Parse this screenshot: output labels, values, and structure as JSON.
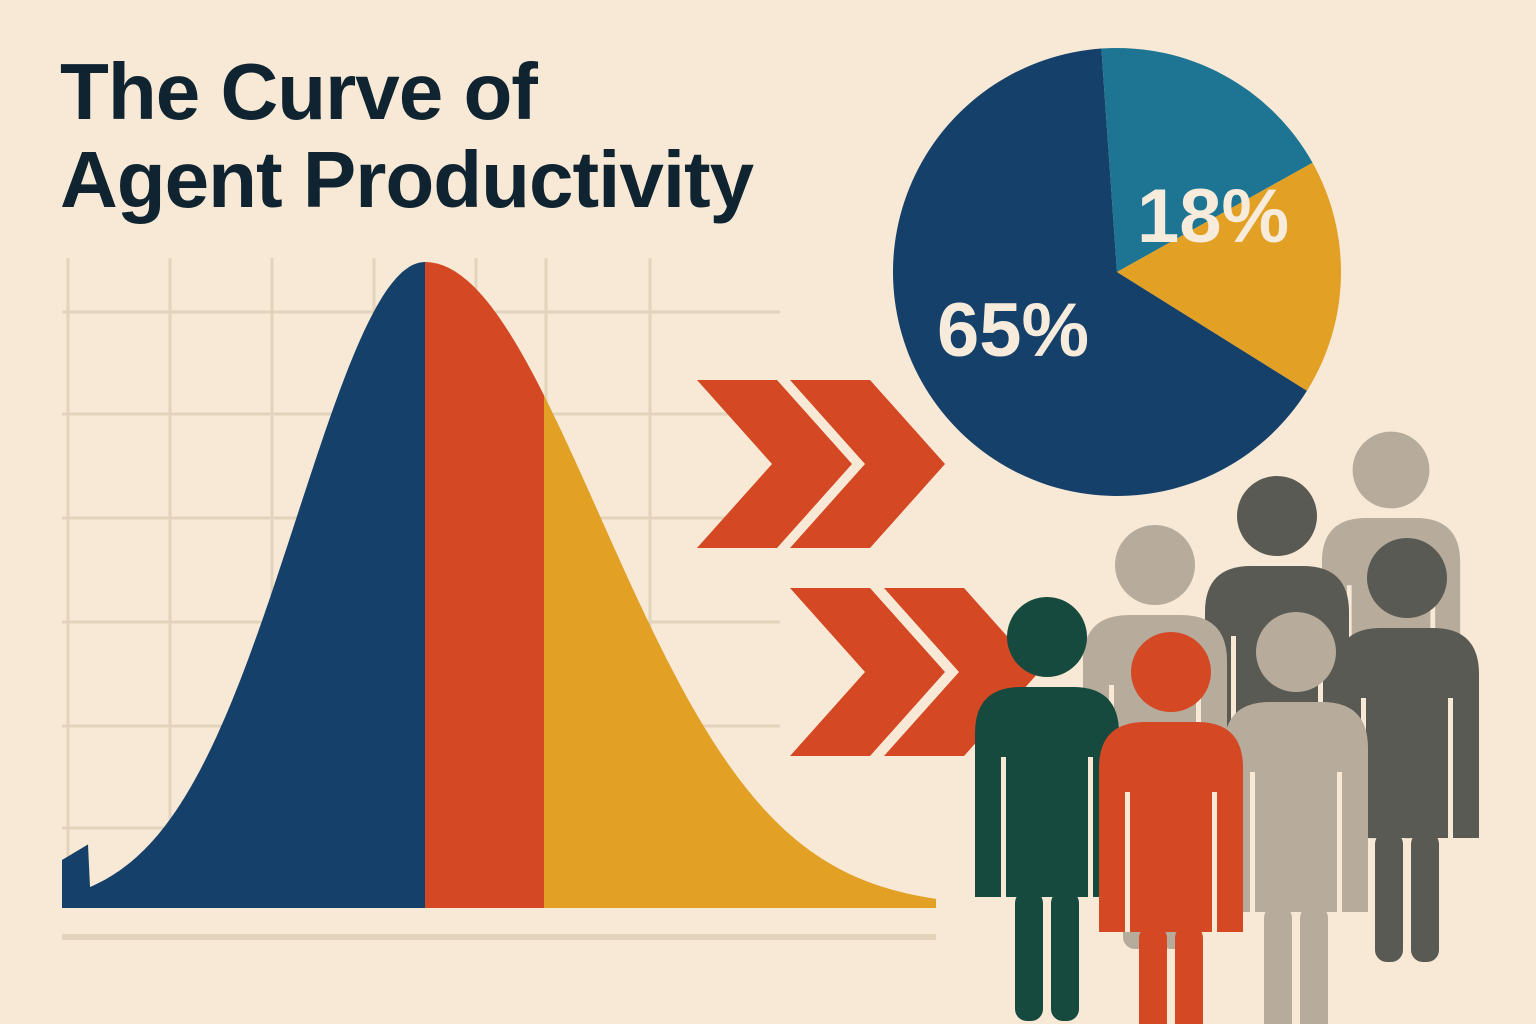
{
  "title": {
    "line1": "The Curve of",
    "line2": "Agent Productivity"
  },
  "colors": {
    "background": "#f7e9d6",
    "navy": "#15406a",
    "red_orange": "#d44824",
    "gold": "#e2a024",
    "teal": "#1e7593",
    "grid": "#e3d3bd",
    "dark_green": "#174a3e",
    "dark_gray": "#595a53",
    "light_gray": "#b7ab9b"
  },
  "chart_data": [
    {
      "type": "area",
      "title": "",
      "xlabel": "",
      "ylabel": "",
      "grid": true,
      "segments": [
        {
          "color": "#15406a"
        },
        {
          "color": "#d44824"
        },
        {
          "color": "#e2a024"
        }
      ]
    },
    {
      "type": "pie",
      "slices": [
        {
          "label": "65%",
          "value": 65,
          "color": "#15406a"
        },
        {
          "label": "18%",
          "value": 18,
          "color": "#1e7593"
        },
        {
          "label": "",
          "value": 17,
          "color": "#e2a024"
        }
      ]
    }
  ],
  "decor": {
    "chevron_color": "#d44824",
    "people_icons": [
      {
        "color": "#b7ab9b"
      },
      {
        "color": "#595a53"
      },
      {
        "color": "#b7ab9b"
      },
      {
        "color": "#595a53"
      },
      {
        "color": "#b7ab9b"
      },
      {
        "color": "#595a53"
      },
      {
        "color": "#174a3e"
      },
      {
        "color": "#d44824"
      }
    ]
  }
}
